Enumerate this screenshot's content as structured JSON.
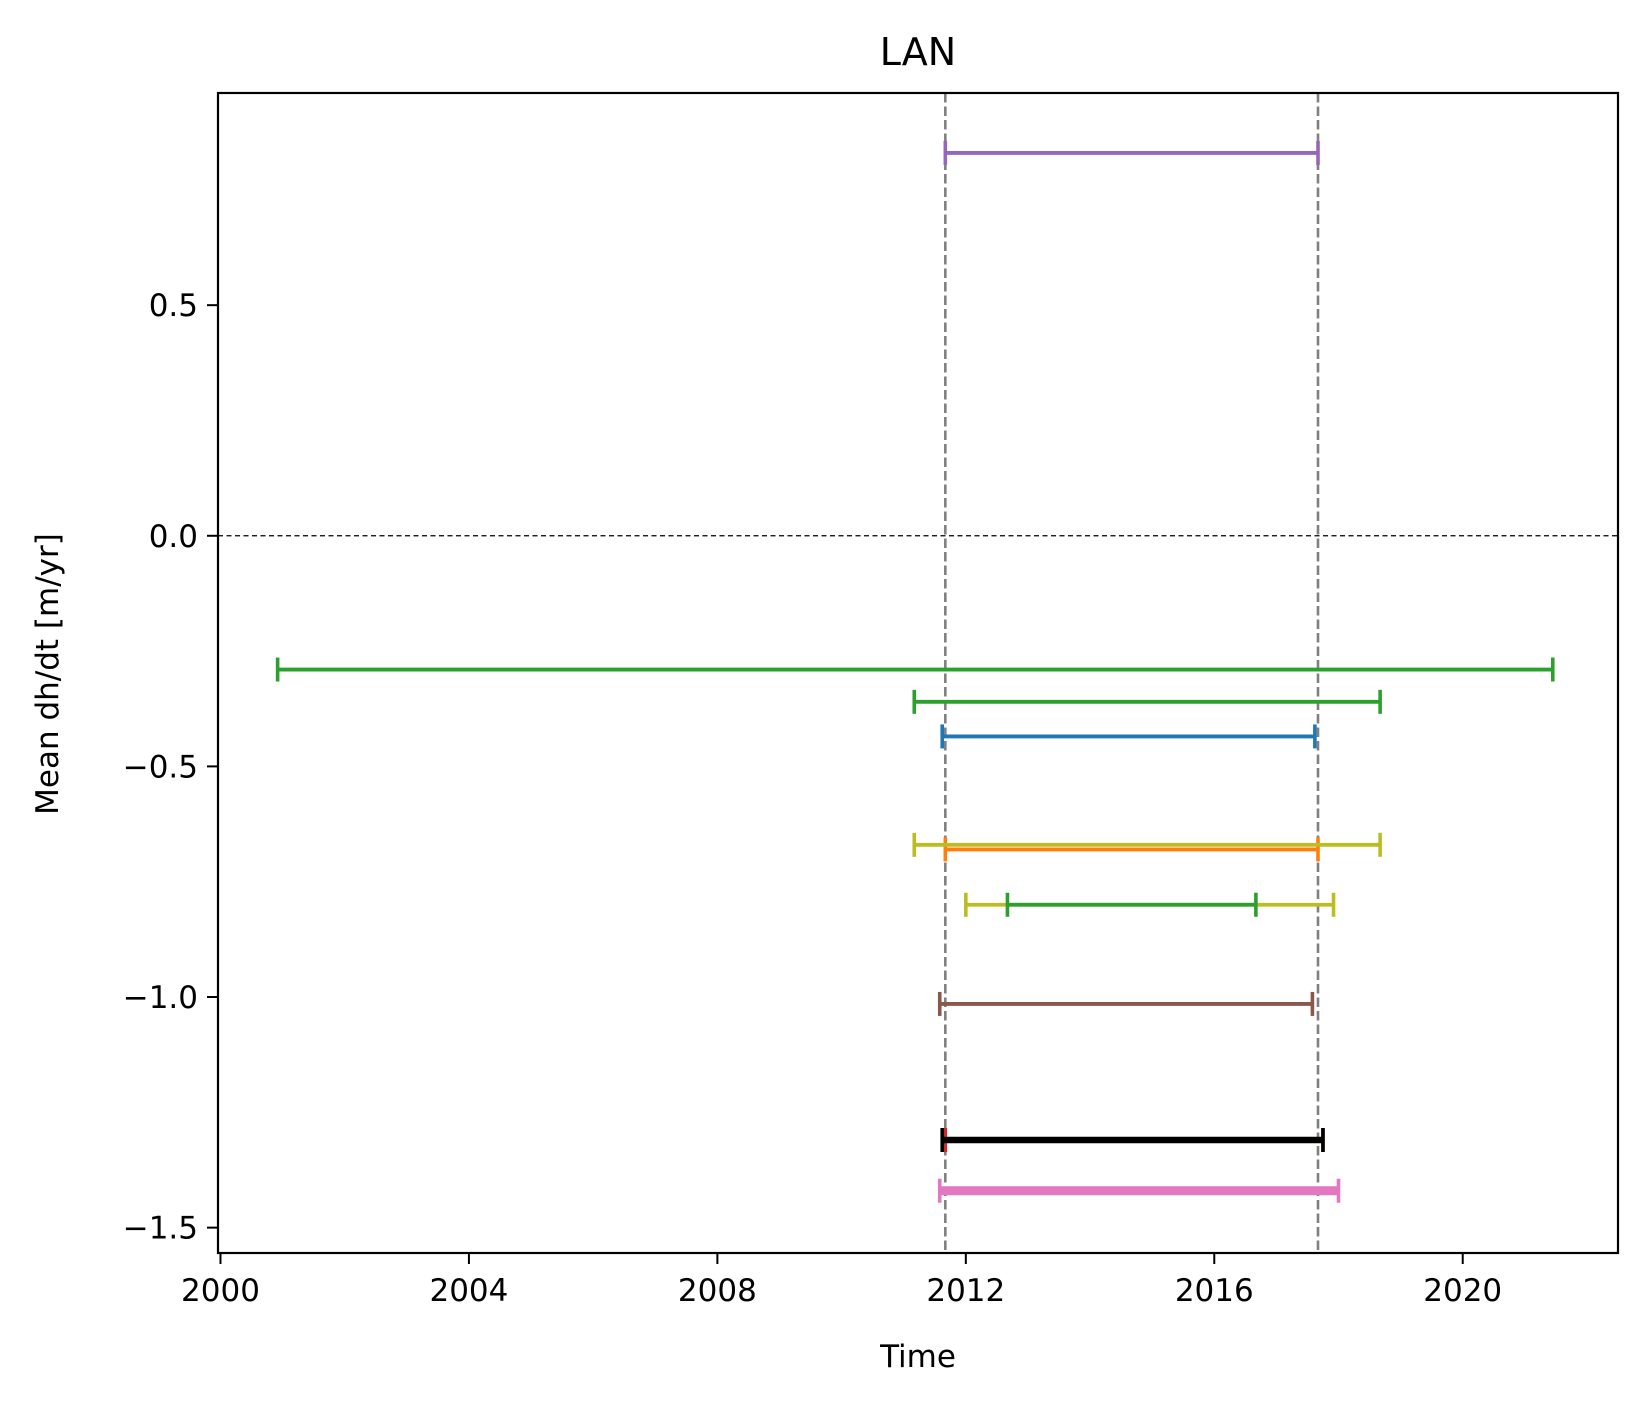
{
  "chart_data": {
    "type": "line",
    "title": "LAN",
    "xlabel": "Time",
    "ylabel": "Mean dh/dt [m/yr]",
    "xlim": [
      1999.96,
      2022.5
    ],
    "ylim": [
      -1.555,
      0.96
    ],
    "xticks": [
      2000,
      2004,
      2008,
      2012,
      2016,
      2020
    ],
    "yticks": [
      -1.5,
      -1.0,
      -0.5,
      0.0,
      0.5
    ],
    "ytick_labels": [
      "−1.5",
      "−1.0",
      "−0.5",
      "0.0",
      "0.5"
    ],
    "grid": false,
    "reference_lines": {
      "horizontal": [
        {
          "y": 0.0,
          "color": "#000000",
          "style": "dashed"
        }
      ],
      "vertical": [
        {
          "x": 2011.67,
          "color": "#808080",
          "style": "dashed"
        },
        {
          "x": 2017.67,
          "color": "#808080",
          "style": "dashed"
        }
      ]
    },
    "series": [
      {
        "x_start": 2011.67,
        "x_end": 2017.67,
        "y": 0.83,
        "color": "#9467bd"
      },
      {
        "x_start": 2000.92,
        "x_end": 2021.45,
        "y": -0.29,
        "color": "#2ca02c"
      },
      {
        "x_start": 2011.17,
        "x_end": 2018.67,
        "y": -0.36,
        "color": "#2ca02c"
      },
      {
        "x_start": 2011.62,
        "x_end": 2017.62,
        "y": -0.435,
        "color": "#1f77b4"
      },
      {
        "x_start": 2011.67,
        "x_end": 2017.67,
        "y": -0.68,
        "color": "#ff7f0e"
      },
      {
        "x_start": 2011.17,
        "x_end": 2018.67,
        "y": -0.67,
        "color": "#bcbd22"
      },
      {
        "x_start": 2012.0,
        "x_end": 2017.92,
        "y": -0.8,
        "color": "#bcbd22"
      },
      {
        "x_start": 2012.67,
        "x_end": 2016.67,
        "y": -0.8,
        "color": "#2ca02c"
      },
      {
        "x_start": 2011.58,
        "x_end": 2017.58,
        "y": -1.015,
        "color": "#8c564b"
      },
      {
        "x_start": 2011.67,
        "x_end": 2017.75,
        "y": -1.31,
        "color": "#d62728"
      },
      {
        "x_start": 2011.62,
        "x_end": 2017.75,
        "y": -1.31,
        "color": "#000000"
      },
      {
        "x_start": 2011.58,
        "x_end": 2018.0,
        "y": -1.42,
        "color": "#e377c2"
      }
    ]
  }
}
